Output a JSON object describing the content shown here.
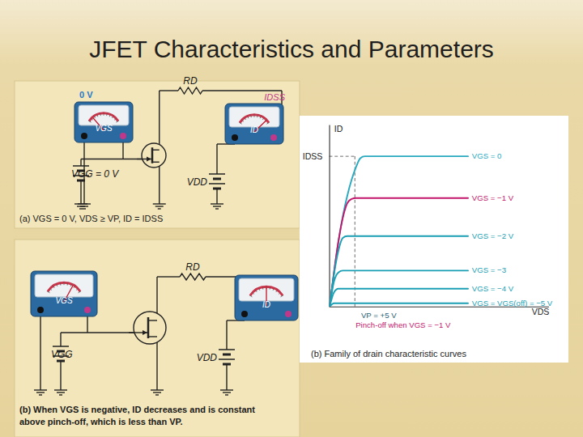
{
  "title": "JFET Characteristics and Parameters",
  "circuits": [
    {
      "meter_gs_value": "0 V",
      "meter_gs_label": "VGS",
      "rd": "RD",
      "meter_d_value": "IDSS",
      "meter_d_label": "ID",
      "vgg": "VGG = 0 V",
      "vdd": "VDD",
      "caption": [
        "(a) VGS = 0 V, VDS ≥ VP, ID = IDSS"
      ]
    },
    {
      "meter_gs_label": "VGS",
      "rd": "RD",
      "meter_d_label": "ID",
      "vgg": "VGG",
      "vdd": "VDD",
      "caption": [
        "(b) When VGS is negative, ID decreases and is constant",
        "above pinch-off, which is less than VP."
      ]
    }
  ],
  "chart_data": {
    "type": "line",
    "caption": "(b) Family of drain characteristic curves",
    "x_label": "VDS",
    "y_label": "ID",
    "x": [
      0,
      0.2,
      0.4,
      0.6,
      0.8,
      1.0,
      1.2,
      1.4,
      1.6,
      6.3
    ],
    "series": [
      {
        "name": "VGS = 0",
        "color": "#29a9c0",
        "values": [
          0,
          1.9,
          3.6,
          5.0,
          6.1,
          7.0,
          7.7,
          8.2,
          8.3,
          8.3
        ]
      },
      {
        "name": "VGS = −1 V",
        "color": "#c3176c",
        "values": [
          0,
          1.9,
          3.6,
          4.9,
          5.7,
          5.95,
          6.0,
          6.0,
          6.0,
          6.0
        ]
      },
      {
        "name": "VGS = −2 V",
        "color": "#1b9fb5",
        "values": [
          0,
          1.8,
          3.1,
          3.8,
          3.9,
          3.9,
          3.9,
          3.9,
          3.9,
          3.9
        ]
      },
      {
        "name": "VGS = −3",
        "color": "#1b9fb5",
        "values": [
          0,
          1.4,
          1.9,
          2.0,
          2.0,
          2.0,
          2.0,
          2.0,
          2.0,
          2.0
        ]
      },
      {
        "name": "VGS = −4 V",
        "color": "#1b9fb5",
        "values": [
          0,
          0.8,
          1.0,
          1.0,
          1.0,
          1.0,
          1.0,
          1.0,
          1.0,
          1.0
        ]
      },
      {
        "name": "VGS = VGS(off) = −5 V",
        "color": "#1b9fb5",
        "values": [
          0,
          0.2,
          0.2,
          0.2,
          0.2,
          0.2,
          0.2,
          0.2,
          0.2,
          0.2
        ]
      }
    ],
    "xlim": [
      0,
      10
    ],
    "ylim": [
      0,
      10
    ],
    "xticks": [],
    "yticks": [
      {
        "value": 8.3,
        "label": "IDSS"
      }
    ],
    "tick_labels": "y",
    "annotations": [
      {
        "text": "VP = +5 V",
        "x": 1.15
      },
      {
        "text": "Pinch-off when VGS = −1 V",
        "x": 0.9
      }
    ]
  }
}
